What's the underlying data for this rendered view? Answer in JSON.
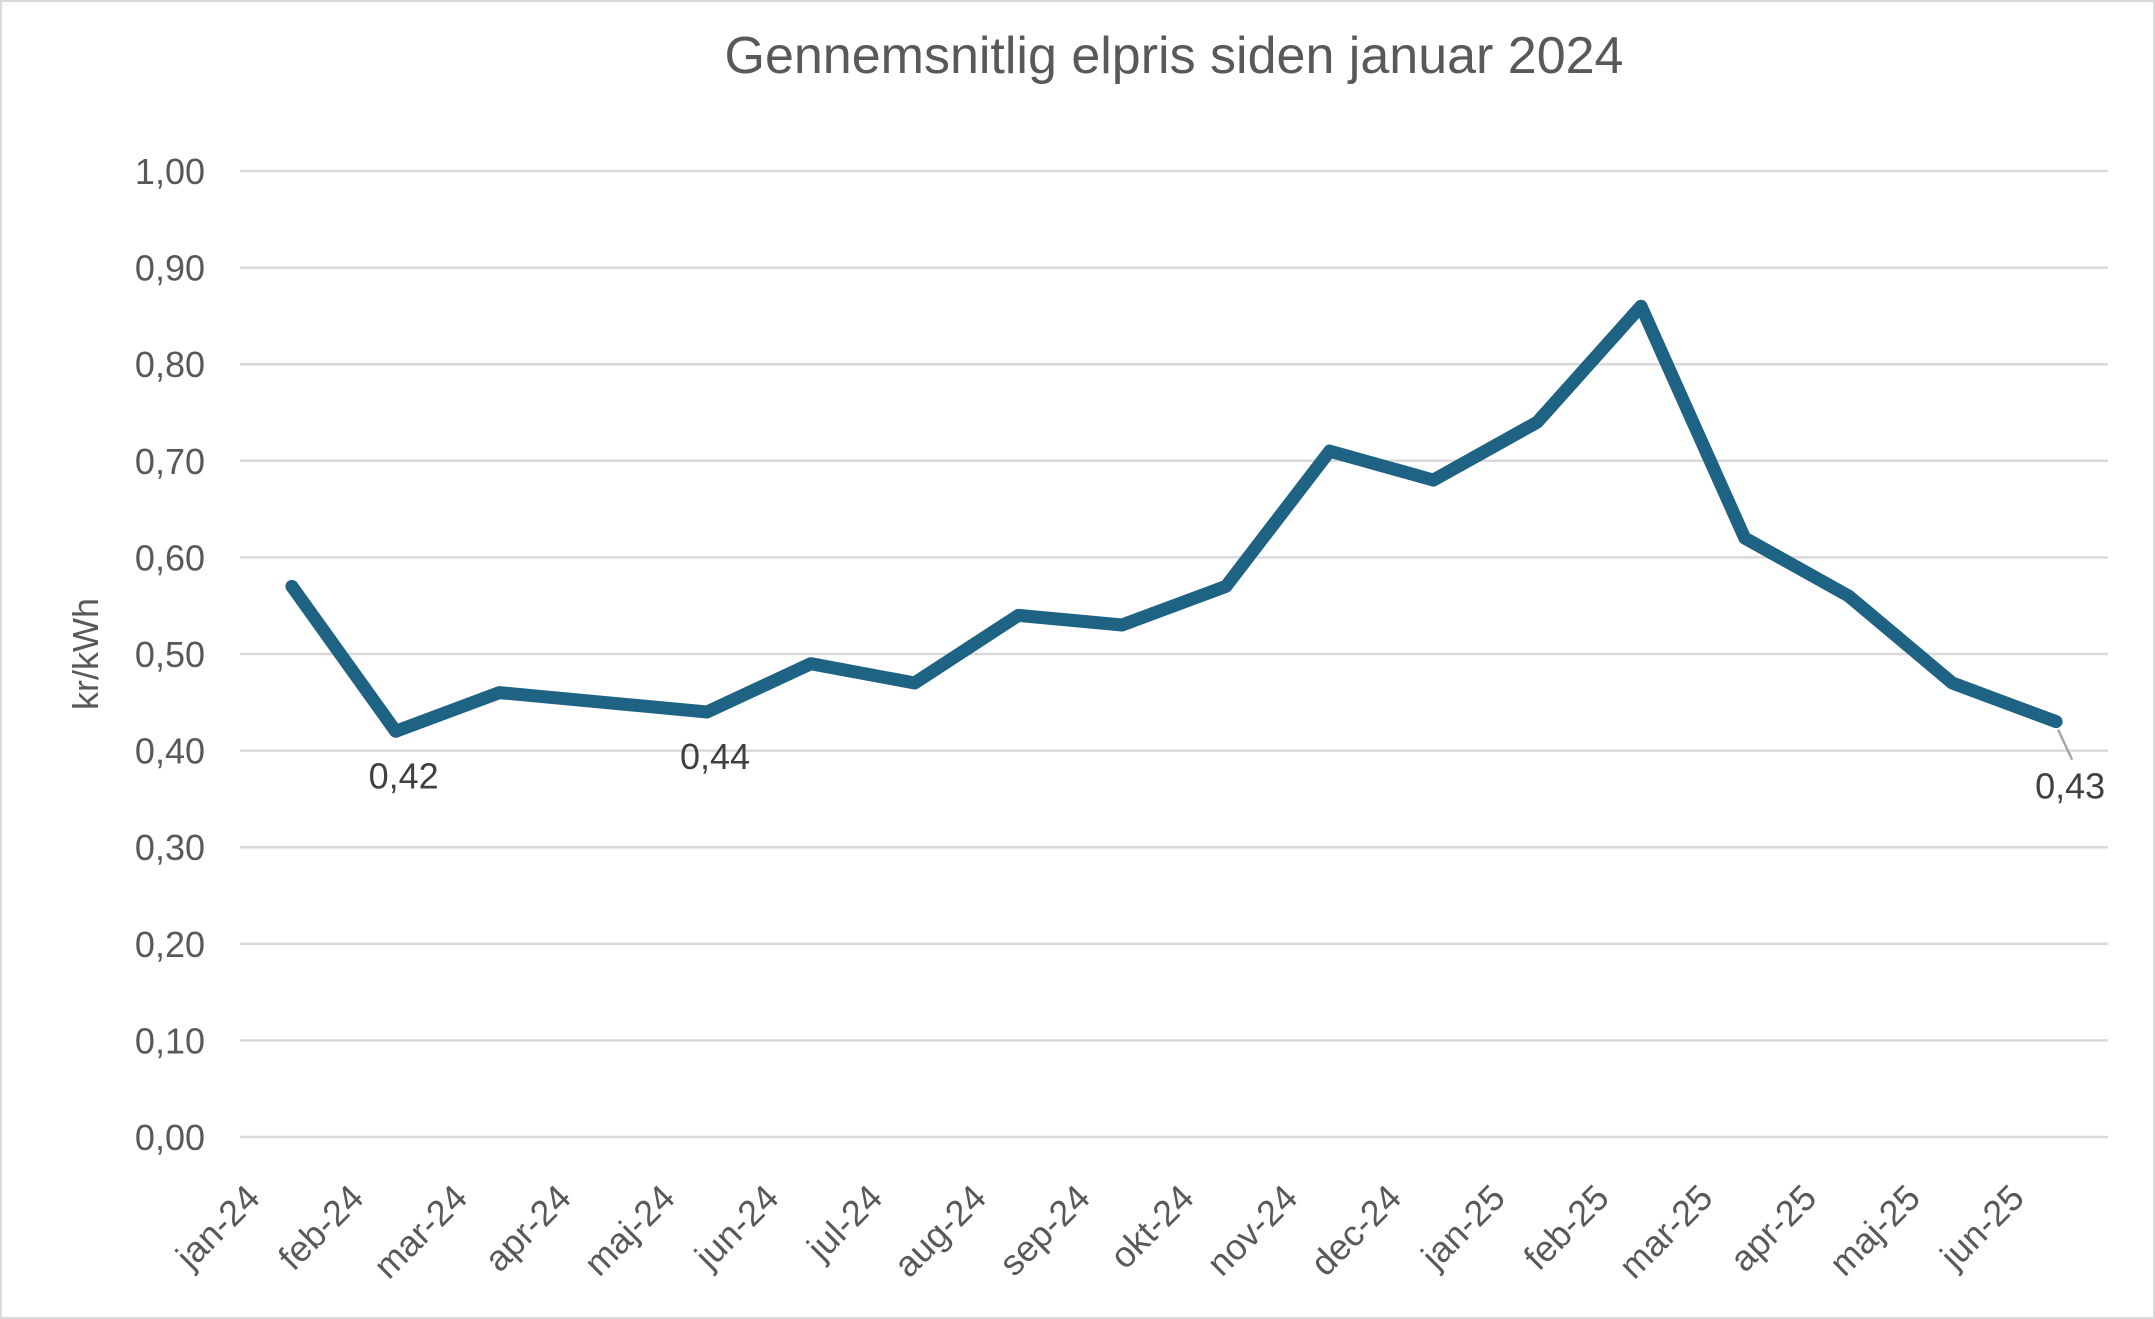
{
  "chart_data": {
    "type": "line",
    "title": "Gennemsnitlig elpris siden januar 2024",
    "xlabel": "",
    "ylabel": "kr/kWh",
    "categories": [
      "jan-24",
      "feb-24",
      "mar-24",
      "apr-24",
      "maj-24",
      "jun-24",
      "jul-24",
      "aug-24",
      "sep-24",
      "okt-24",
      "nov-24",
      "dec-24",
      "jan-25",
      "feb-25",
      "mar-25",
      "apr-25",
      "maj-25",
      "jun-25"
    ],
    "values": [
      0.57,
      0.42,
      0.46,
      0.45,
      0.44,
      0.49,
      0.47,
      0.54,
      0.53,
      0.57,
      0.71,
      0.68,
      0.74,
      0.86,
      0.62,
      0.56,
      0.47,
      0.43
    ],
    "ylim": [
      0,
      1
    ],
    "ytick_step": 0.1,
    "ytick_labels": [
      "0,00",
      "0,10",
      "0,20",
      "0,30",
      "0,40",
      "0,50",
      "0,60",
      "0,70",
      "0,80",
      "0,90",
      "1,00"
    ],
    "grid": "horizontal",
    "legend": "none",
    "x_tick_rotation_deg": 45,
    "point_labels": [
      {
        "category": "feb-24",
        "text": "0,42",
        "placement": "below"
      },
      {
        "category": "maj-24",
        "text": "0,44",
        "placement": "below"
      },
      {
        "category": "jun-25",
        "text": "0,43",
        "placement": "leader-below-right"
      }
    ]
  },
  "styles": {
    "line_color": "#1f6384",
    "grid_color": "#d9d9d9",
    "axis_text_color": "#595959",
    "title_text_color": "#595959",
    "data_label_color": "#404040",
    "leader_line_color": "#a6a6a6",
    "background_color": "#ffffff",
    "border_color": "#d9d9d9"
  }
}
